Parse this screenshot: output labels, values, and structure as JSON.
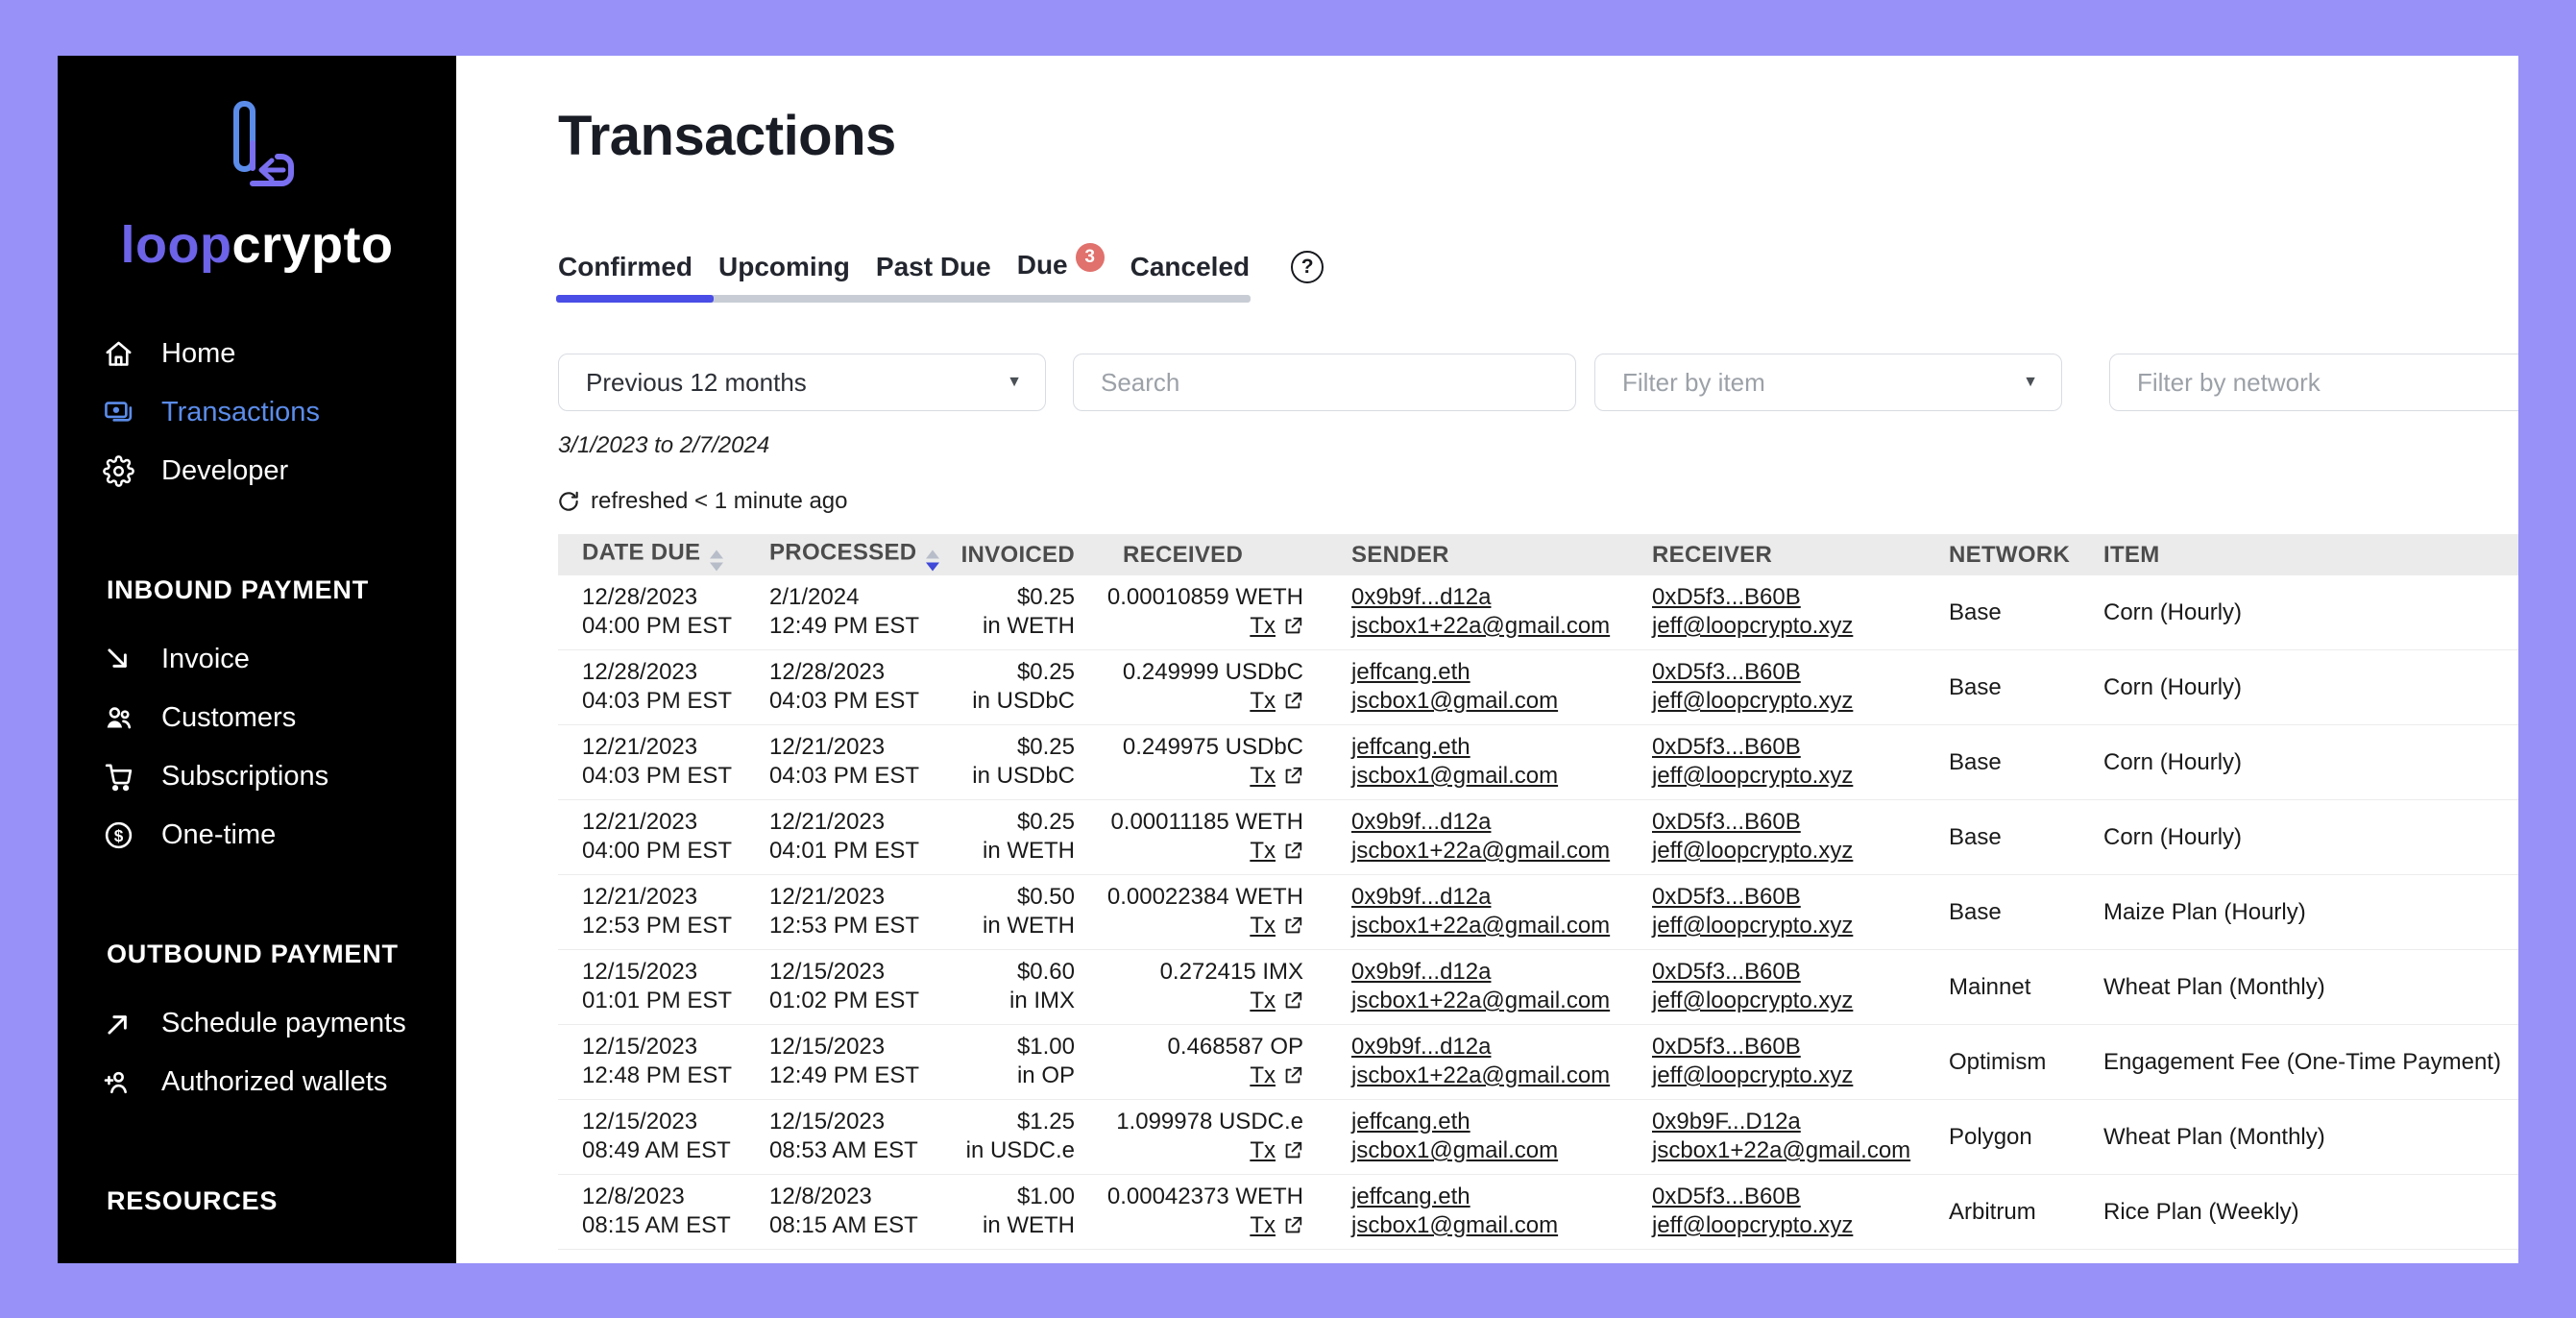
{
  "brand": {
    "loop": "loop",
    "crypto": "crypto"
  },
  "colors": {
    "frame_purple": "#9791F8",
    "brand_purple": "#6C63E8",
    "active_item_blue": "#5B8CEA",
    "tab_underline_blue": "#4A4DE6",
    "badge_red": "#E0716C",
    "header_gray": "#EBEBEB"
  },
  "icons": {
    "chevron_down": "▼",
    "help": "?"
  },
  "sidebar": {
    "sections": [
      {
        "header": "",
        "items": [
          {
            "label": "Home",
            "icon": "home-icon",
            "active": false
          },
          {
            "label": "Transactions",
            "icon": "transactions-icon",
            "active": true
          },
          {
            "label": "Developer",
            "icon": "developer-gear-icon",
            "active": false
          }
        ]
      },
      {
        "header": "INBOUND PAYMENT",
        "items": [
          {
            "label": "Invoice",
            "icon": "invoice-arrow-icon",
            "active": false
          },
          {
            "label": "Customers",
            "icon": "customers-icon",
            "active": false
          },
          {
            "label": "Subscriptions",
            "icon": "subscriptions-cart-icon",
            "active": false
          },
          {
            "label": "One-time",
            "icon": "one-time-dollar-icon",
            "active": false
          }
        ]
      },
      {
        "header": "OUTBOUND PAYMENT",
        "items": [
          {
            "label": "Schedule payments",
            "icon": "schedule-payments-icon",
            "active": false
          },
          {
            "label": "Authorized wallets",
            "icon": "authorized-wallets-icon",
            "active": false
          }
        ]
      },
      {
        "header": "RESOURCES",
        "items": []
      }
    ]
  },
  "header": {
    "title": "Transactions",
    "tabs": [
      {
        "label": "Confirmed",
        "active": true,
        "badge": ""
      },
      {
        "label": "Upcoming",
        "active": false,
        "badge": ""
      },
      {
        "label": "Past Due",
        "active": false,
        "badge": ""
      },
      {
        "label": "Due",
        "active": false,
        "badge": "3"
      },
      {
        "label": "Canceled",
        "active": false,
        "badge": ""
      }
    ]
  },
  "filters": {
    "date_range_value": "Previous 12 months",
    "search_placeholder": "Search",
    "item_placeholder": "Filter by item",
    "network_placeholder": "Filter by network",
    "range_text": "3/1/2023 to 2/7/2024",
    "refreshed_text": "refreshed < 1 minute ago"
  },
  "table": {
    "tx_label": "Tx",
    "columns": [
      {
        "label": "DATE DUE",
        "sort": "inactive"
      },
      {
        "label": "PROCESSED",
        "sort": "desc"
      },
      {
        "label": "INVOICED",
        "sort": ""
      },
      {
        "label": "RECEIVED",
        "sort": ""
      },
      {
        "label": "SENDER",
        "sort": ""
      },
      {
        "label": "RECEIVER",
        "sort": ""
      },
      {
        "label": "NETWORK",
        "sort": ""
      },
      {
        "label": "ITEM",
        "sort": ""
      }
    ],
    "rows": [
      {
        "date_due": [
          "12/28/2023",
          "04:00 PM EST"
        ],
        "processed": [
          "2/1/2024",
          "12:49 PM EST"
        ],
        "invoiced": [
          "$0.25",
          "in WETH"
        ],
        "received": "0.00010859 WETH",
        "sender": [
          "0x9b9f...d12a",
          "jscbox1+22a@gmail.com"
        ],
        "receiver": [
          "0xD5f3...B60B",
          "jeff@loopcrypto.xyz"
        ],
        "network": "Base",
        "item": "Corn (Hourly)"
      },
      {
        "date_due": [
          "12/28/2023",
          "04:03 PM EST"
        ],
        "processed": [
          "12/28/2023",
          "04:03 PM EST"
        ],
        "invoiced": [
          "$0.25",
          "in USDbC"
        ],
        "received": "0.249999 USDbC",
        "sender": [
          "jeffcang.eth",
          "jscbox1@gmail.com"
        ],
        "receiver": [
          "0xD5f3...B60B",
          "jeff@loopcrypto.xyz"
        ],
        "network": "Base",
        "item": "Corn (Hourly)"
      },
      {
        "date_due": [
          "12/21/2023",
          "04:03 PM EST"
        ],
        "processed": [
          "12/21/2023",
          "04:03 PM EST"
        ],
        "invoiced": [
          "$0.25",
          "in USDbC"
        ],
        "received": "0.249975 USDbC",
        "sender": [
          "jeffcang.eth",
          "jscbox1@gmail.com"
        ],
        "receiver": [
          "0xD5f3...B60B",
          "jeff@loopcrypto.xyz"
        ],
        "network": "Base",
        "item": "Corn (Hourly)"
      },
      {
        "date_due": [
          "12/21/2023",
          "04:00 PM EST"
        ],
        "processed": [
          "12/21/2023",
          "04:01 PM EST"
        ],
        "invoiced": [
          "$0.25",
          "in WETH"
        ],
        "received": "0.00011185 WETH",
        "sender": [
          "0x9b9f...d12a",
          "jscbox1+22a@gmail.com"
        ],
        "receiver": [
          "0xD5f3...B60B",
          "jeff@loopcrypto.xyz"
        ],
        "network": "Base",
        "item": "Corn (Hourly)"
      },
      {
        "date_due": [
          "12/21/2023",
          "12:53 PM EST"
        ],
        "processed": [
          "12/21/2023",
          "12:53 PM EST"
        ],
        "invoiced": [
          "$0.50",
          "in WETH"
        ],
        "received": "0.00022384 WETH",
        "sender": [
          "0x9b9f...d12a",
          "jscbox1+22a@gmail.com"
        ],
        "receiver": [
          "0xD5f3...B60B",
          "jeff@loopcrypto.xyz"
        ],
        "network": "Base",
        "item": "Maize Plan (Hourly)"
      },
      {
        "date_due": [
          "12/15/2023",
          "01:01 PM EST"
        ],
        "processed": [
          "12/15/2023",
          "01:02 PM EST"
        ],
        "invoiced": [
          "$0.60",
          "in IMX"
        ],
        "received": "0.272415 IMX",
        "sender": [
          "0x9b9f...d12a",
          "jscbox1+22a@gmail.com"
        ],
        "receiver": [
          "0xD5f3...B60B",
          "jeff@loopcrypto.xyz"
        ],
        "network": "Mainnet",
        "item": "Wheat Plan (Monthly)"
      },
      {
        "date_due": [
          "12/15/2023",
          "12:48 PM EST"
        ],
        "processed": [
          "12/15/2023",
          "12:49 PM EST"
        ],
        "invoiced": [
          "$1.00",
          "in OP"
        ],
        "received": "0.468587 OP",
        "sender": [
          "0x9b9f...d12a",
          "jscbox1+22a@gmail.com"
        ],
        "receiver": [
          "0xD5f3...B60B",
          "jeff@loopcrypto.xyz"
        ],
        "network": "Optimism",
        "item": "Engagement Fee (One-Time Payment)"
      },
      {
        "date_due": [
          "12/15/2023",
          "08:49 AM EST"
        ],
        "processed": [
          "12/15/2023",
          "08:53 AM EST"
        ],
        "invoiced": [
          "$1.25",
          "in USDC.e"
        ],
        "received": "1.099978 USDC.e",
        "sender": [
          "jeffcang.eth",
          "jscbox1@gmail.com"
        ],
        "receiver": [
          "0x9b9F...D12a",
          "jscbox1+22a@gmail.com"
        ],
        "network": "Polygon",
        "item": "Wheat Plan (Monthly)"
      },
      {
        "date_due": [
          "12/8/2023",
          "08:15 AM EST"
        ],
        "processed": [
          "12/8/2023",
          "08:15 AM EST"
        ],
        "invoiced": [
          "$1.00",
          "in WETH"
        ],
        "received": "0.00042373 WETH",
        "sender": [
          "jeffcang.eth",
          "jscbox1@gmail.com"
        ],
        "receiver": [
          "0xD5f3...B60B",
          "jeff@loopcrypto.xyz"
        ],
        "network": "Arbitrum",
        "item": "Rice Plan (Weekly)"
      }
    ]
  }
}
